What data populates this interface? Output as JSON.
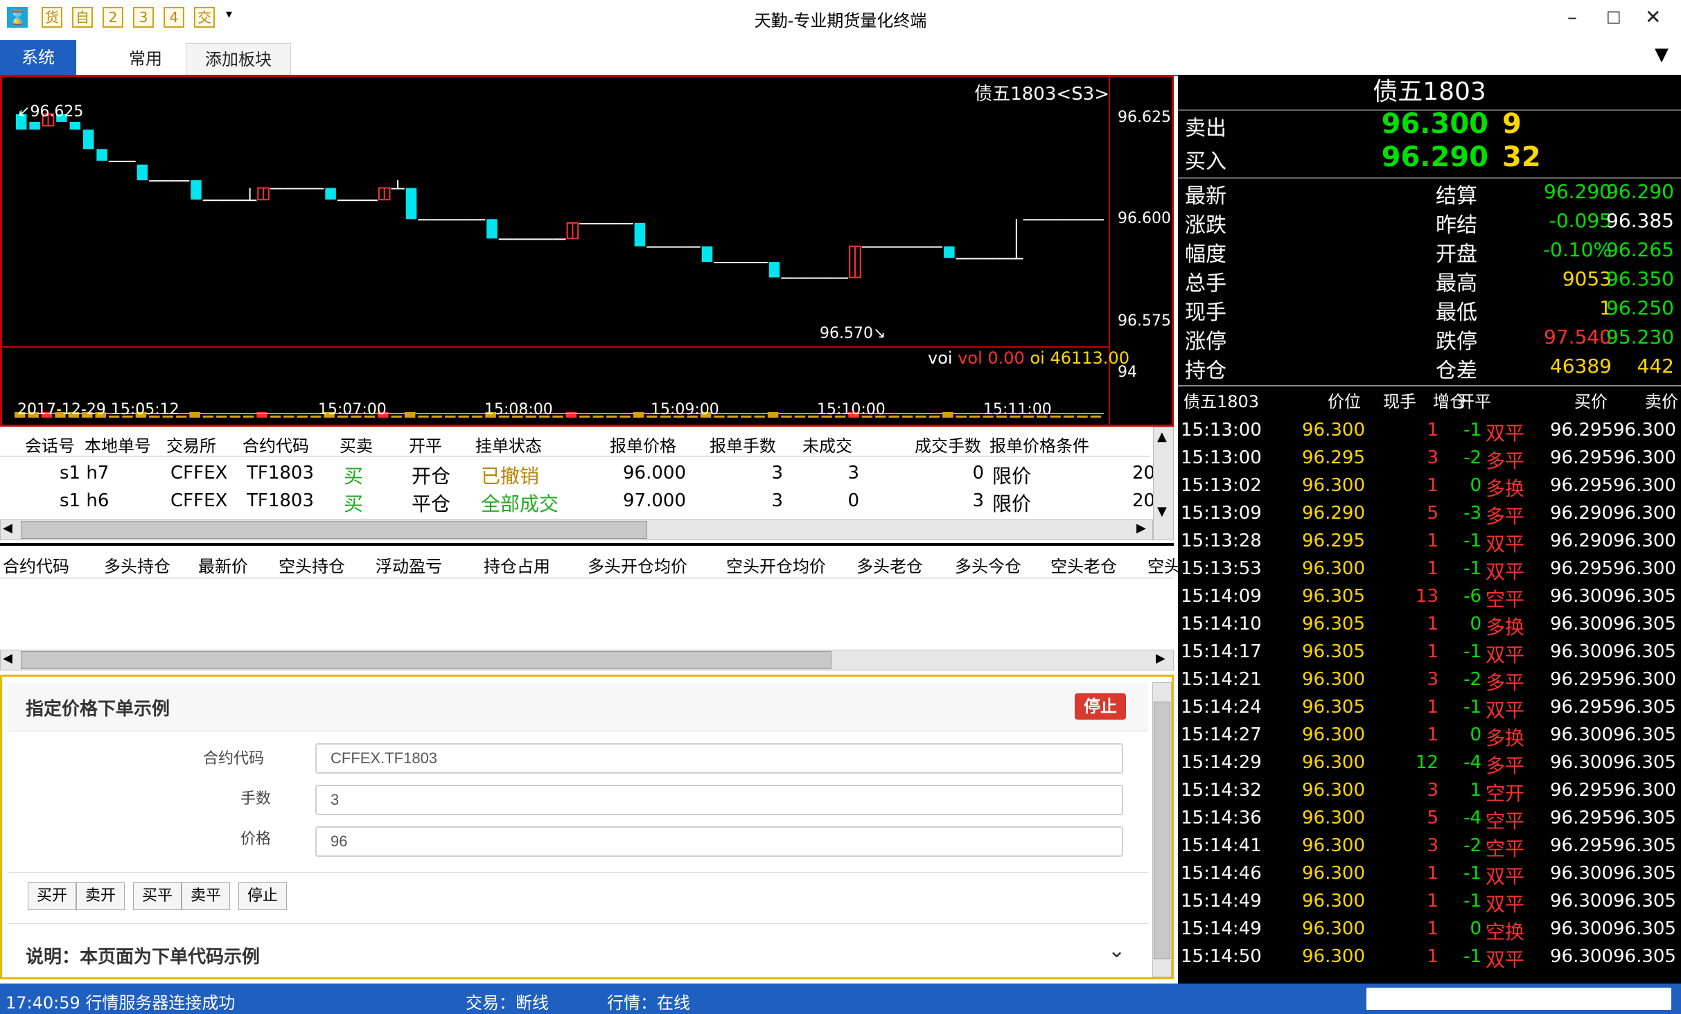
{
  "app": {
    "title": "天勤-专业期货量化终端",
    "toolbar_icons": [
      "货",
      "自",
      "2",
      "3",
      "4",
      "交"
    ],
    "app_icon": "hourglass-icon"
  },
  "menu": {
    "system": "系统",
    "common": "常用",
    "add_block": "添加板块"
  },
  "chart": {
    "symbol_label": "债五1803<S3>",
    "high_label": "96.625",
    "low_label": "96.570",
    "y_ticks": [
      "96.625",
      "96.600",
      "96.575"
    ],
    "vol_tick": "94",
    "voi_label": "voi",
    "vol_label": "vol 0.00",
    "oi_label": "oi 46113.00",
    "time_labels": [
      "2017-12-29 15:05:12",
      "15:07:00",
      "15:08:00",
      "15:09:00",
      "15:10:00",
      "15:11:00"
    ],
    "colors": {
      "up": "#ff3030",
      "down": "#00e5ee",
      "axis": "#c00000"
    }
  },
  "chart_data": {
    "type": "candlestick",
    "title": "债五1803<S3>",
    "ylim": [
      96.565,
      96.63
    ],
    "candles": [
      {
        "o": 96.624,
        "c": 96.62,
        "h": 96.625,
        "l": 96.62
      },
      {
        "o": 96.622,
        "c": 96.62,
        "h": 96.622,
        "l": 96.62
      },
      {
        "o": 96.621,
        "c": 96.624,
        "h": 96.624,
        "l": 96.621
      },
      {
        "o": 96.624,
        "c": 96.622,
        "h": 96.624,
        "l": 96.622
      },
      {
        "o": 96.622,
        "c": 96.62,
        "h": 96.622,
        "l": 96.62
      },
      {
        "o": 96.62,
        "c": 96.615,
        "h": 96.62,
        "l": 96.615
      },
      {
        "o": 96.615,
        "c": 96.612,
        "h": 96.615,
        "l": 96.612
      },
      {
        "o": 96.612,
        "c": 96.612,
        "h": 96.612,
        "l": 96.612
      },
      {
        "o": 96.612,
        "c": 96.612,
        "h": 96.612,
        "l": 96.612
      },
      {
        "o": 96.611,
        "c": 96.607,
        "h": 96.611,
        "l": 96.607
      },
      {
        "o": 96.607,
        "c": 96.607,
        "h": 96.607,
        "l": 96.607
      },
      {
        "o": 96.607,
        "c": 96.607,
        "h": 96.607,
        "l": 96.607
      },
      {
        "o": 96.607,
        "c": 96.607,
        "h": 96.607,
        "l": 96.607
      },
      {
        "o": 96.607,
        "c": 96.602,
        "h": 96.607,
        "l": 96.602
      },
      {
        "o": 96.602,
        "c": 96.602,
        "h": 96.602,
        "l": 96.602
      },
      {
        "o": 96.602,
        "c": 96.602,
        "h": 96.602,
        "l": 96.602
      },
      {
        "o": 96.602,
        "c": 96.602,
        "h": 96.602,
        "l": 96.602
      },
      {
        "o": 96.602,
        "c": 96.602,
        "h": 96.605,
        "l": 96.602
      },
      {
        "o": 96.602,
        "c": 96.605,
        "h": 96.605,
        "l": 96.602
      },
      {
        "o": 96.605,
        "c": 96.605,
        "h": 96.605,
        "l": 96.605
      },
      {
        "o": 96.605,
        "c": 96.605,
        "h": 96.605,
        "l": 96.605
      },
      {
        "o": 96.605,
        "c": 96.605,
        "h": 96.605,
        "l": 96.605
      },
      {
        "o": 96.605,
        "c": 96.605,
        "h": 96.605,
        "l": 96.605
      },
      {
        "o": 96.605,
        "c": 96.602,
        "h": 96.605,
        "l": 96.602
      },
      {
        "o": 96.602,
        "c": 96.602,
        "h": 96.602,
        "l": 96.602
      },
      {
        "o": 96.602,
        "c": 96.602,
        "h": 96.602,
        "l": 96.602
      },
      {
        "o": 96.602,
        "c": 96.602,
        "h": 96.602,
        "l": 96.602
      },
      {
        "o": 96.602,
        "c": 96.605,
        "h": 96.605,
        "l": 96.602
      },
      {
        "o": 96.605,
        "c": 96.605,
        "h": 96.607,
        "l": 96.605
      },
      {
        "o": 96.605,
        "c": 96.597,
        "h": 96.605,
        "l": 96.597
      },
      {
        "o": 96.597,
        "c": 96.597,
        "h": 96.597,
        "l": 96.597
      },
      {
        "o": 96.597,
        "c": 96.597,
        "h": 96.597,
        "l": 96.597
      },
      {
        "o": 96.597,
        "c": 96.597,
        "h": 96.597,
        "l": 96.597
      },
      {
        "o": 96.597,
        "c": 96.597,
        "h": 96.597,
        "l": 96.597
      },
      {
        "o": 96.597,
        "c": 96.597,
        "h": 96.597,
        "l": 96.597
      },
      {
        "o": 96.597,
        "c": 96.592,
        "h": 96.597,
        "l": 96.592
      },
      {
        "o": 96.592,
        "c": 96.592,
        "h": 96.592,
        "l": 96.592
      },
      {
        "o": 96.592,
        "c": 96.592,
        "h": 96.592,
        "l": 96.592
      },
      {
        "o": 96.592,
        "c": 96.592,
        "h": 96.592,
        "l": 96.592
      },
      {
        "o": 96.592,
        "c": 96.592,
        "h": 96.592,
        "l": 96.592
      },
      {
        "o": 96.592,
        "c": 96.592,
        "h": 96.592,
        "l": 96.592
      },
      {
        "o": 96.592,
        "c": 96.596,
        "h": 96.596,
        "l": 96.592
      },
      {
        "o": 96.596,
        "c": 96.596,
        "h": 96.596,
        "l": 96.596
      },
      {
        "o": 96.596,
        "c": 96.596,
        "h": 96.596,
        "l": 96.596
      },
      {
        "o": 96.596,
        "c": 96.596,
        "h": 96.596,
        "l": 96.596
      },
      {
        "o": 96.596,
        "c": 96.596,
        "h": 96.596,
        "l": 96.596
      },
      {
        "o": 96.596,
        "c": 96.59,
        "h": 96.596,
        "l": 96.59
      },
      {
        "o": 96.59,
        "c": 96.59,
        "h": 96.59,
        "l": 96.59
      },
      {
        "o": 96.59,
        "c": 96.59,
        "h": 96.59,
        "l": 96.59
      },
      {
        "o": 96.59,
        "c": 96.59,
        "h": 96.59,
        "l": 96.59
      },
      {
        "o": 96.59,
        "c": 96.59,
        "h": 96.59,
        "l": 96.59
      },
      {
        "o": 96.59,
        "c": 96.586,
        "h": 96.59,
        "l": 96.586
      },
      {
        "o": 96.586,
        "c": 96.586,
        "h": 96.586,
        "l": 96.586
      },
      {
        "o": 96.586,
        "c": 96.586,
        "h": 96.586,
        "l": 96.586
      },
      {
        "o": 96.586,
        "c": 96.586,
        "h": 96.586,
        "l": 96.586
      },
      {
        "o": 96.586,
        "c": 96.586,
        "h": 96.586,
        "l": 96.586
      },
      {
        "o": 96.586,
        "c": 96.582,
        "h": 96.586,
        "l": 96.582
      },
      {
        "o": 96.582,
        "c": 96.582,
        "h": 96.582,
        "l": 96.582
      },
      {
        "o": 96.582,
        "c": 96.582,
        "h": 96.582,
        "l": 96.582
      },
      {
        "o": 96.582,
        "c": 96.582,
        "h": 96.582,
        "l": 96.582
      },
      {
        "o": 96.582,
        "c": 96.582,
        "h": 96.582,
        "l": 96.582
      },
      {
        "o": 96.582,
        "c": 96.582,
        "h": 96.582,
        "l": 96.582
      },
      {
        "o": 96.582,
        "c": 96.59,
        "h": 96.59,
        "l": 96.582
      },
      {
        "o": 96.59,
        "c": 96.59,
        "h": 96.59,
        "l": 96.59
      },
      {
        "o": 96.59,
        "c": 96.59,
        "h": 96.59,
        "l": 96.59
      },
      {
        "o": 96.59,
        "c": 96.59,
        "h": 96.59,
        "l": 96.59
      },
      {
        "o": 96.59,
        "c": 96.59,
        "h": 96.59,
        "l": 96.59
      },
      {
        "o": 96.59,
        "c": 96.59,
        "h": 96.59,
        "l": 96.59
      },
      {
        "o": 96.59,
        "c": 96.59,
        "h": 96.59,
        "l": 96.59
      },
      {
        "o": 96.59,
        "c": 96.587,
        "h": 96.59,
        "l": 96.587
      },
      {
        "o": 96.587,
        "c": 96.587,
        "h": 96.587,
        "l": 96.587
      },
      {
        "o": 96.587,
        "c": 96.587,
        "h": 96.587,
        "l": 96.587
      },
      {
        "o": 96.587,
        "c": 96.587,
        "h": 96.587,
        "l": 96.587
      },
      {
        "o": 96.587,
        "c": 96.587,
        "h": 96.587,
        "l": 96.587
      },
      {
        "o": 96.587,
        "c": 96.587,
        "h": 96.597,
        "l": 96.587
      },
      {
        "o": 96.597,
        "c": 96.597,
        "h": 96.597,
        "l": 96.597
      },
      {
        "o": 96.597,
        "c": 96.597,
        "h": 96.597,
        "l": 96.597
      },
      {
        "o": 96.597,
        "c": 96.597,
        "h": 96.597,
        "l": 96.597
      },
      {
        "o": 96.597,
        "c": 96.597,
        "h": 96.597,
        "l": 96.597
      },
      {
        "o": 96.597,
        "c": 96.597,
        "h": 96.597,
        "l": 96.597
      },
      {
        "o": 96.597,
        "c": 96.597,
        "h": 96.597,
        "l": 96.597
      }
    ]
  },
  "quote": {
    "symbol": "债五1803",
    "ask_label": "卖出",
    "ask_price": "96.300",
    "ask_vol": "9",
    "bid_label": "买入",
    "bid_price": "96.290",
    "bid_vol": "32",
    "rows": [
      {
        "l1": "最新",
        "v1": "96.290",
        "c1": "#00e000",
        "l2": "结算",
        "v2": "96.290",
        "c2": "#00e000"
      },
      {
        "l1": "涨跌",
        "v1": "-0.095",
        "c1": "#00e000",
        "l2": "昨结",
        "v2": "96.385",
        "c2": "#ffffff"
      },
      {
        "l1": "幅度",
        "v1": "-0.10%",
        "c1": "#00e000",
        "l2": "开盘",
        "v2": "96.265",
        "c2": "#00e000"
      },
      {
        "l1": "总手",
        "v1": "9053",
        "c1": "#ffd700",
        "l2": "最高",
        "v2": "96.350",
        "c2": "#00e000"
      },
      {
        "l1": "现手",
        "v1": "1",
        "c1": "#ffd700",
        "l2": "最低",
        "v2": "96.250",
        "c2": "#00e000"
      },
      {
        "l1": "涨停",
        "v1": "97.540",
        "c1": "#ff3030",
        "l2": "跌停",
        "v2": "95.230",
        "c2": "#00e000"
      },
      {
        "l1": "持仓",
        "v1": "46389",
        "c1": "#ffd700",
        "l2": "仓差",
        "v2": "442",
        "c2": "#ffd700"
      }
    ],
    "tick_headers": [
      "债五1803",
      "价位",
      "现手",
      "增仓",
      "开平",
      "买价",
      "卖价"
    ],
    "ticks": [
      {
        "t": "15:13:00",
        "p": "96.300",
        "v": "1",
        "d": "-1",
        "k": "双平",
        "b": "96.295",
        "a": "96.300"
      },
      {
        "t": "15:13:00",
        "p": "96.295",
        "v": "3",
        "d": "-2",
        "k": "多平",
        "b": "96.295",
        "a": "96.300"
      },
      {
        "t": "15:13:02",
        "p": "96.300",
        "v": "1",
        "d": "0",
        "k": "多换",
        "b": "96.295",
        "a": "96.300"
      },
      {
        "t": "15:13:09",
        "p": "96.290",
        "v": "5",
        "d": "-3",
        "k": "多平",
        "b": "96.290",
        "a": "96.300"
      },
      {
        "t": "15:13:28",
        "p": "96.295",
        "v": "1",
        "d": "-1",
        "k": "双平",
        "b": "96.290",
        "a": "96.300"
      },
      {
        "t": "15:13:53",
        "p": "96.300",
        "v": "1",
        "d": "-1",
        "k": "双平",
        "b": "96.295",
        "a": "96.300"
      },
      {
        "t": "15:14:09",
        "p": "96.305",
        "v": "13",
        "d": "-6",
        "k": "空平",
        "b": "96.300",
        "a": "96.305"
      },
      {
        "t": "15:14:10",
        "p": "96.305",
        "v": "1",
        "d": "0",
        "k": "多换",
        "b": "96.300",
        "a": "96.305"
      },
      {
        "t": "15:14:17",
        "p": "96.305",
        "v": "1",
        "d": "-1",
        "k": "双平",
        "b": "96.300",
        "a": "96.305"
      },
      {
        "t": "15:14:21",
        "p": "96.300",
        "v": "3",
        "d": "-2",
        "k": "多平",
        "b": "96.295",
        "a": "96.300"
      },
      {
        "t": "15:14:24",
        "p": "96.305",
        "v": "1",
        "d": "-1",
        "k": "双平",
        "b": "96.295",
        "a": "96.305"
      },
      {
        "t": "15:14:27",
        "p": "96.300",
        "v": "1",
        "d": "0",
        "k": "多换",
        "b": "96.300",
        "a": "96.305"
      },
      {
        "t": "15:14:29",
        "p": "96.300",
        "v": "12",
        "d": "-4",
        "k": "多平",
        "b": "96.300",
        "a": "96.305"
      },
      {
        "t": "15:14:32",
        "p": "96.300",
        "v": "3",
        "d": "1",
        "k": "空开",
        "b": "96.295",
        "a": "96.300"
      },
      {
        "t": "15:14:36",
        "p": "96.300",
        "v": "5",
        "d": "-4",
        "k": "空平",
        "b": "96.295",
        "a": "96.305"
      },
      {
        "t": "15:14:41",
        "p": "96.300",
        "v": "3",
        "d": "-2",
        "k": "空平",
        "b": "96.295",
        "a": "96.305"
      },
      {
        "t": "15:14:46",
        "p": "96.300",
        "v": "1",
        "d": "-1",
        "k": "双平",
        "b": "96.300",
        "a": "96.305"
      },
      {
        "t": "15:14:49",
        "p": "96.300",
        "v": "1",
        "d": "-1",
        "k": "双平",
        "b": "96.300",
        "a": "96.305"
      },
      {
        "t": "15:14:49",
        "p": "96.300",
        "v": "1",
        "d": "0",
        "k": "空换",
        "b": "96.300",
        "a": "96.305"
      },
      {
        "t": "15:14:50",
        "p": "96.300",
        "v": "1",
        "d": "-1",
        "k": "双平",
        "b": "96.300",
        "a": "96.305"
      }
    ],
    "tick_colors": {
      "v_green": "#00e000",
      "v_red": "#ff3030"
    }
  },
  "orders": {
    "headers": [
      "会话号",
      "本地单号",
      "交易所",
      "合约代码",
      "买卖",
      "开平",
      "挂单状态",
      "报单价格",
      "报单手数",
      "未成交",
      "成交手数",
      "报单价格条件"
    ],
    "rows": [
      {
        "sess": "s1 h7",
        "ex": "CFFEX",
        "sym": "TF1803",
        "side": "买",
        "oc": "开仓",
        "status": "已撤销",
        "price": "96.000",
        "qty": "3",
        "unfilled": "3",
        "filled": "0",
        "cond": "限价",
        "extra": "20"
      },
      {
        "sess": "s1 h6",
        "ex": "CFFEX",
        "sym": "TF1803",
        "side": "买",
        "oc": "平仓",
        "status": "全部成交",
        "price": "97.000",
        "qty": "3",
        "unfilled": "0",
        "filled": "3",
        "cond": "限价",
        "extra": "20"
      }
    ]
  },
  "positions": {
    "headers": [
      "合约代码",
      "多头持仓",
      "最新价",
      "空头持仓",
      "浮动盈亏",
      "持仓占用",
      "多头开仓均价",
      "空头开仓均价",
      "多头老仓",
      "多头今仓",
      "空头老仓",
      "空头"
    ]
  },
  "form": {
    "title": "指定价格下单示例",
    "stop_label": "停止",
    "symbol_label": "合约代码",
    "symbol_value": "CFFEX.TF1803",
    "qty_label": "手数",
    "qty_value": "3",
    "price_label": "价格",
    "price_value": "96",
    "buy_open": "买开",
    "sell_open": "卖开",
    "buy_close": "买平",
    "sell_close": "卖平",
    "stop_btn": "停止",
    "note": "说明：本页面为下单代码示例"
  },
  "status": {
    "time_msg": "17:40:59 行情服务器连接成功",
    "trade": "交易：断线",
    "market": "行情：在线"
  }
}
